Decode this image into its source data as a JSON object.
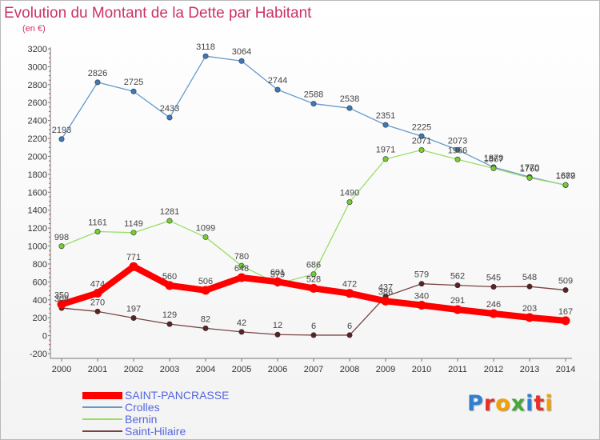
{
  "header": {
    "title": "Evolution du Montant de la Dette par Habitant",
    "subtitle": "(en €)"
  },
  "logo": {
    "letters": [
      "P",
      "r",
      "o",
      "x",
      "i",
      "t",
      "i"
    ],
    "colors": [
      "#2f7fd1",
      "#e8302b",
      "#f4a000",
      "#45a836",
      "#2f7fd1",
      "#e8302b",
      "#f4a000"
    ]
  },
  "chart_data": {
    "type": "line",
    "title": "Evolution du Montant de la Dette par Habitant",
    "ylabel": "(en €)",
    "xlabel": "",
    "categories": [
      "2000",
      "2001",
      "2002",
      "2003",
      "2004",
      "2005",
      "2006",
      "2007",
      "2008",
      "2009",
      "2010",
      "2011",
      "2012",
      "2013",
      "2014"
    ],
    "ylim": [
      -200,
      3200
    ],
    "yticks": [
      -200,
      0,
      200,
      400,
      600,
      800,
      1000,
      1200,
      1400,
      1600,
      1800,
      2000,
      2200,
      2400,
      2600,
      2800,
      3000,
      3200
    ],
    "grid": false,
    "legend_position": "bottom-left",
    "series": [
      {
        "name": "Crolles",
        "color": "#6699cc",
        "marker": "#3d78b8",
        "width": 1.3,
        "values": [
          2193,
          2826,
          2725,
          2433,
          3118,
          3064,
          2744,
          2588,
          2538,
          2351,
          2225,
          2073,
          1879,
          1770,
          1679
        ]
      },
      {
        "name": "Bernin",
        "color": "#99dd66",
        "marker": "#77cc33",
        "width": 1.3,
        "values": [
          998,
          1161,
          1149,
          1281,
          1099,
          780,
          579,
          686,
          1490,
          1971,
          2071,
          1966,
          1867,
          1760,
          1682
        ]
      },
      {
        "name": "Saint-Hilaire",
        "color": "#774444",
        "marker": "#5a2222",
        "width": 1.3,
        "values": [
          308,
          270,
          197,
          129,
          82,
          42,
          12,
          6,
          6,
          437,
          579,
          562,
          545,
          548,
          509
        ]
      },
      {
        "name": "SAINT-PANCRASSE",
        "color": "#ff0000",
        "marker": "#ff0000",
        "width": 8,
        "values": [
          350,
          474,
          771,
          560,
          506,
          648,
          601,
          528,
          472,
          386,
          340,
          291,
          246,
          203,
          167
        ]
      }
    ],
    "legend_order": [
      "SAINT-PANCRASSE",
      "Crolles",
      "Bernin",
      "Saint-Hilaire"
    ]
  }
}
